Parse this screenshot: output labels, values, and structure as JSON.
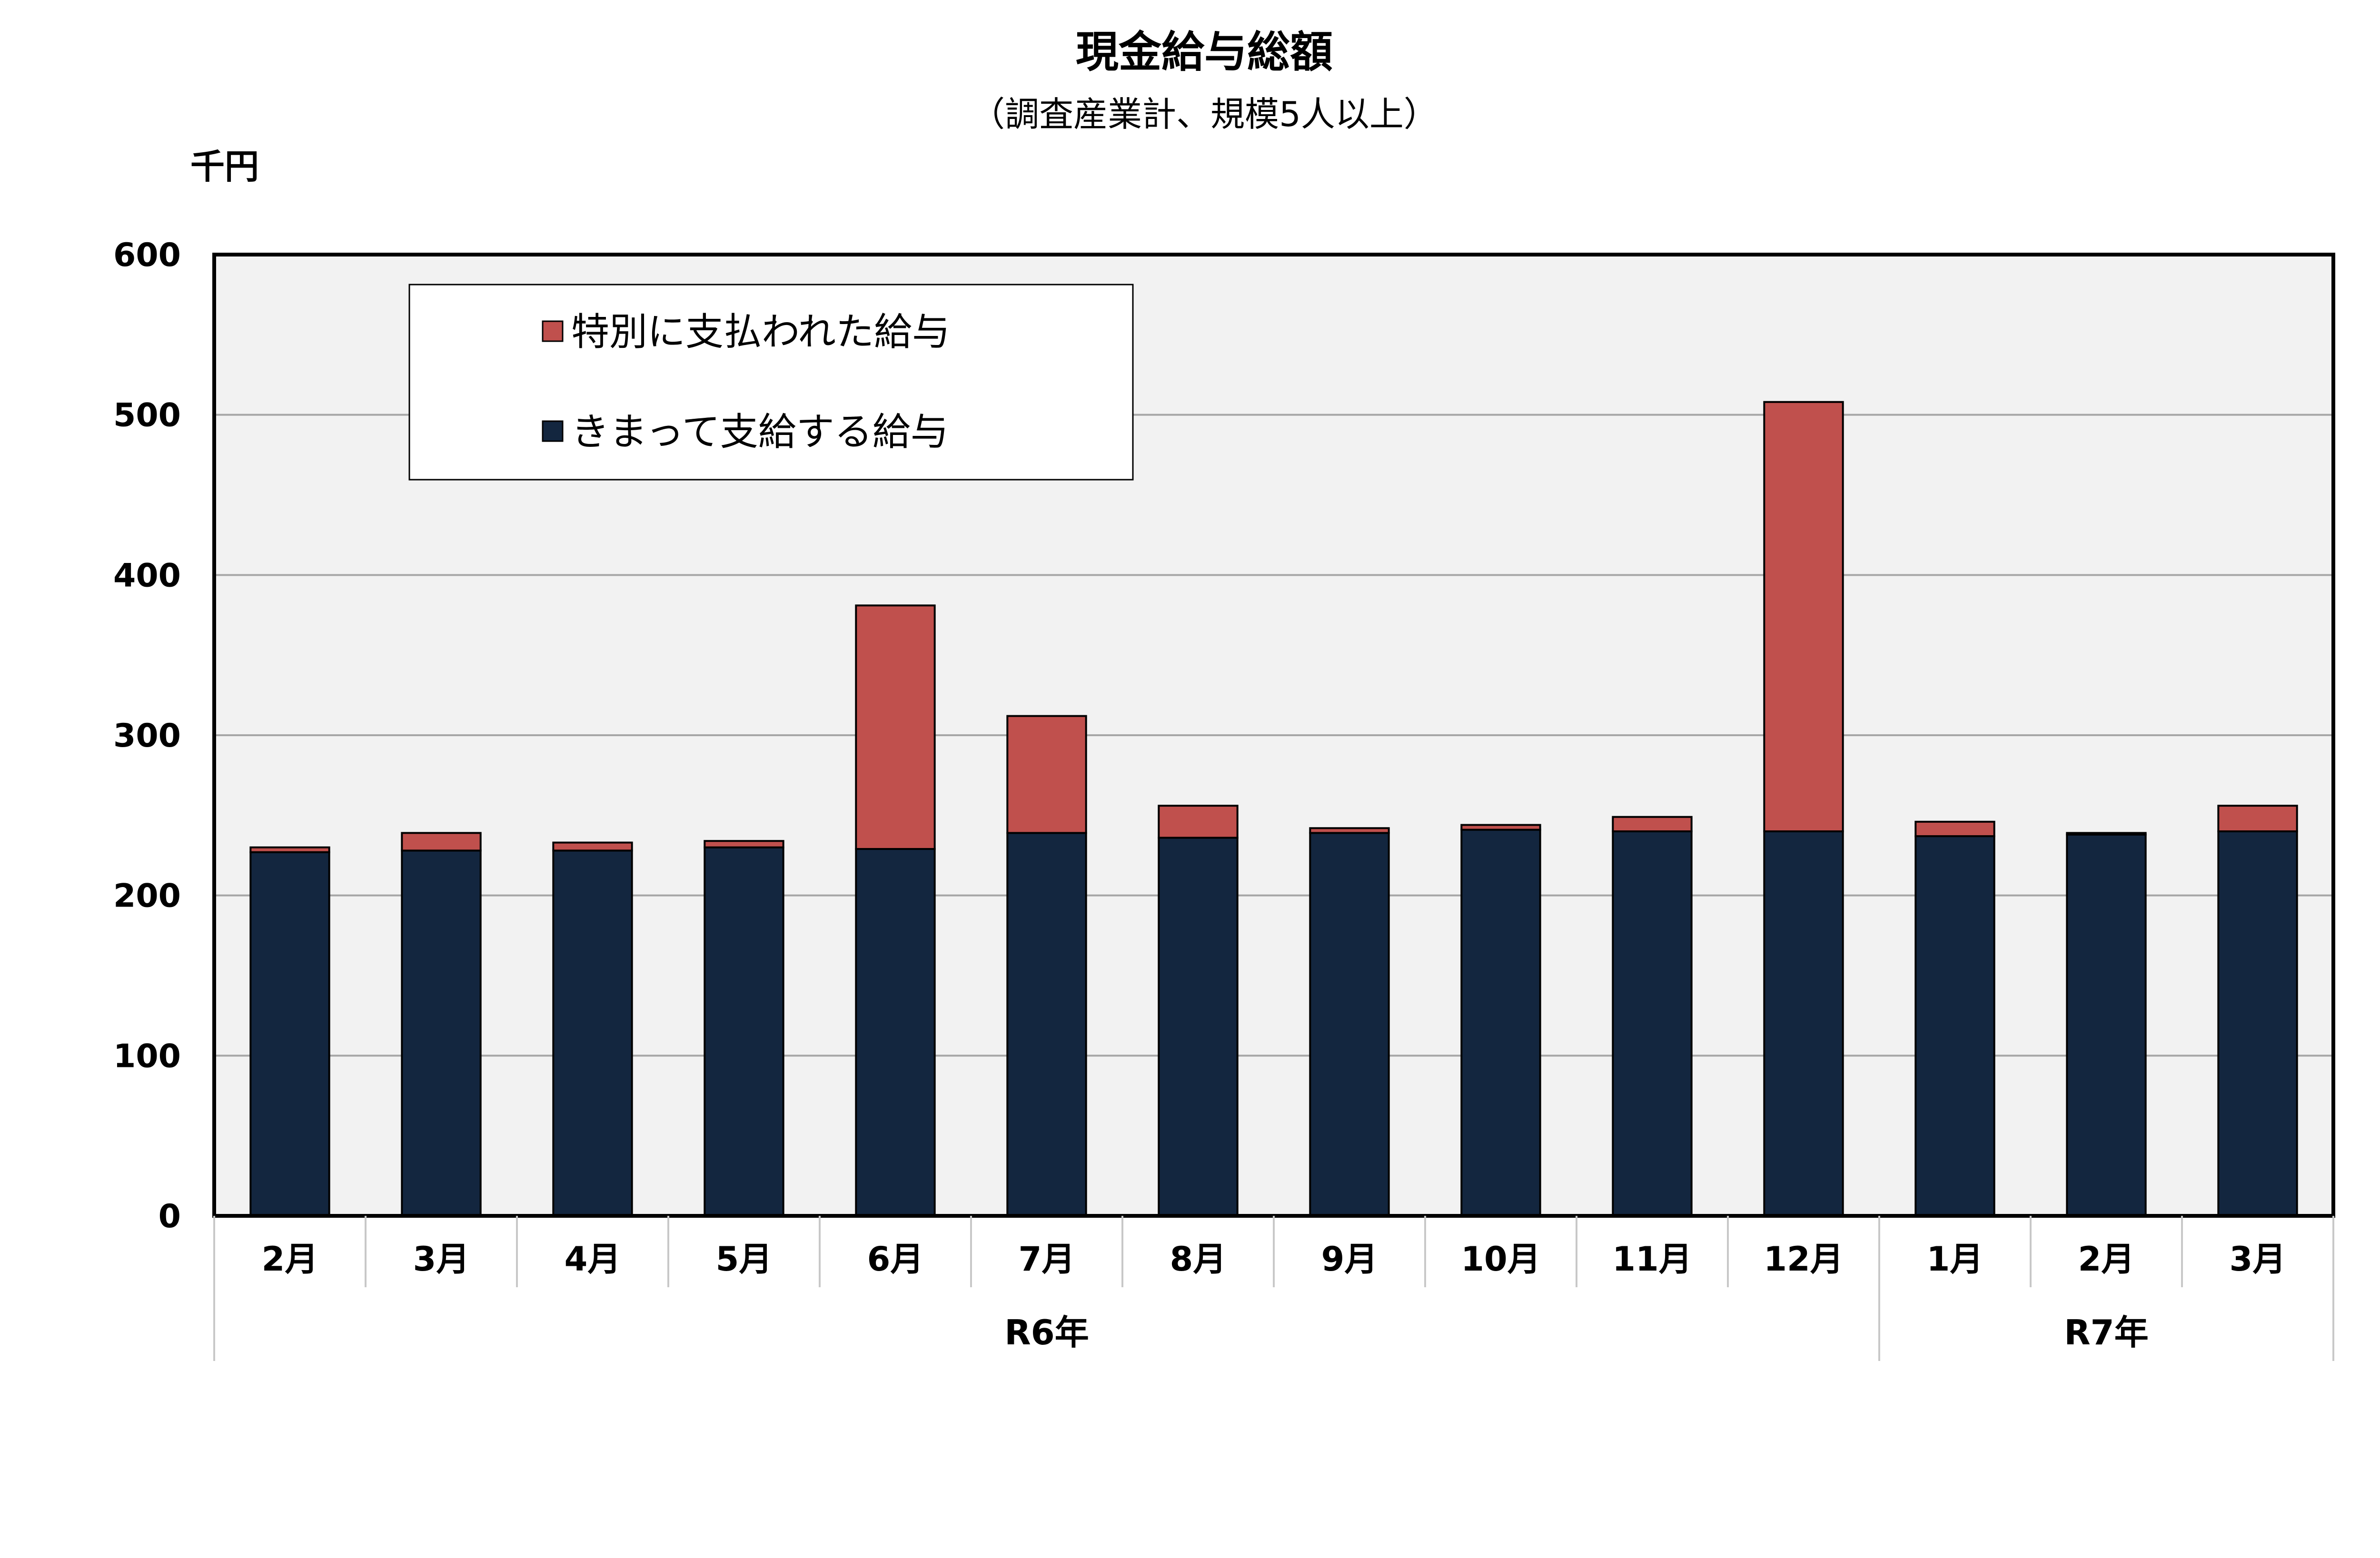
{
  "chart_data": {
    "type": "bar",
    "stacked": true,
    "title": "現金給与総額",
    "subtitle": "（調査産業計、規模5人以上）",
    "ylabel": "千円",
    "ylim": [
      0,
      600
    ],
    "yticks": [
      0,
      100,
      200,
      300,
      400,
      500,
      600
    ],
    "ytick_labels": [
      "0",
      "100",
      "200",
      "300",
      "400",
      "500",
      "600"
    ],
    "categories": [
      "2月",
      "3月",
      "4月",
      "5月",
      "6月",
      "7月",
      "8月",
      "9月",
      "10月",
      "11月",
      "12月",
      "1月",
      "2月",
      "3月"
    ],
    "groups": [
      {
        "label": "R6年",
        "start": 0,
        "end": 10
      },
      {
        "label": "R7年",
        "start": 11,
        "end": 13
      }
    ],
    "series": [
      {
        "name": "きまって支給する給与",
        "color": "#13263f",
        "values": [
          227,
          228,
          228,
          230,
          229,
          239,
          236,
          239,
          241,
          240,
          240,
          237,
          238,
          240
        ]
      },
      {
        "name": "特別に支払われた給与",
        "color": "#c0504d",
        "values": [
          3,
          11,
          5,
          4,
          152,
          73,
          20,
          3,
          3,
          9,
          268,
          9,
          1,
          16
        ]
      }
    ],
    "legend": {
      "position": "top-left-inside",
      "order": [
        "特別に支払われた給与",
        "きまって支給する給与"
      ]
    },
    "grid": true,
    "plot_background": "#f2f2f2",
    "gridline_color": "#a6a6a6"
  }
}
